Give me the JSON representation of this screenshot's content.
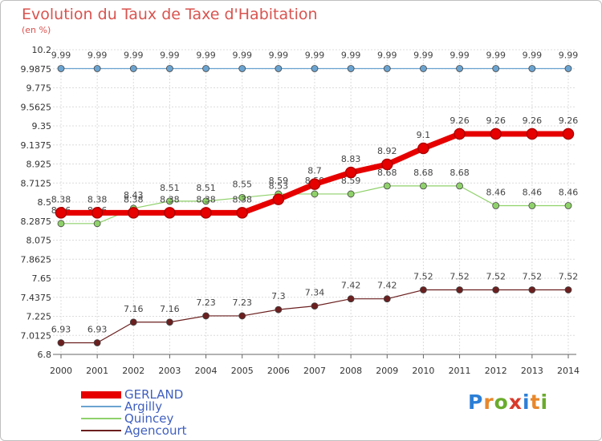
{
  "title": "Evolution du Taux de Taxe d'Habitation",
  "subtitle": "(en %)",
  "logo": {
    "text": "Proxiti",
    "letters": [
      "P",
      "r",
      "o",
      "x",
      "i",
      "t",
      "i"
    ],
    "colors": [
      "#2c7fd6",
      "#e8872a",
      "#6aab2c",
      "#d93a2b",
      "#2c7fd6",
      "#e8872a",
      "#6aab2c"
    ]
  },
  "chart_data": {
    "type": "line",
    "title": "Evolution du Taux de Taxe d'Habitation",
    "subtitle": "(en %)",
    "xlabel": "",
    "ylabel": "",
    "x": [
      "2000",
      "2001",
      "2002",
      "2003",
      "2004",
      "2005",
      "2006",
      "2007",
      "2008",
      "2009",
      "2010",
      "2011",
      "2012",
      "2013",
      "2014"
    ],
    "ylim": [
      6.8,
      10.2
    ],
    "yticks": [
      "10.2",
      "9.9875",
      "9.775",
      "9.5625",
      "9.35",
      "9.1375",
      "8.925",
      "8.7125",
      "8.5",
      "8.2875",
      "8.075",
      "7.8625",
      "7.65",
      "7.4375",
      "7.225",
      "7.0125",
      "6.8"
    ],
    "grid": true,
    "legend_position": "bottom-left",
    "series": [
      {
        "name": "Agencourt",
        "color": "#6b1f1f",
        "width": 1.2,
        "marker": 4,
        "values": [
          6.93,
          6.93,
          7.16,
          7.16,
          7.23,
          7.23,
          7.3,
          7.34,
          7.42,
          7.42,
          7.52,
          7.52,
          7.52,
          7.52,
          7.52
        ],
        "labels": [
          "6.93",
          "6.93",
          "7.16",
          "7.16",
          "7.23",
          "7.23",
          "7.3",
          "7.34",
          "7.42",
          "7.42",
          "7.52",
          "7.52",
          "7.52",
          "7.52",
          "7.52"
        ]
      },
      {
        "name": "Quincey",
        "color": "#8fd16a",
        "width": 1.2,
        "marker": 4,
        "values": [
          8.26,
          8.26,
          8.43,
          8.51,
          8.51,
          8.55,
          8.59,
          8.59,
          8.59,
          8.68,
          8.68,
          8.68,
          8.46,
          8.46,
          8.46
        ],
        "labels": [
          "8.26",
          "8.26",
          "8.43",
          "8.51",
          "8.51",
          "8.55",
          "8.59",
          "8.59",
          "8.59",
          "8.68",
          "8.68",
          "8.68",
          "8.46",
          "8.46",
          "8.46"
        ]
      },
      {
        "name": "Argilly",
        "color": "#6aa3d0",
        "width": 1.2,
        "marker": 4,
        "values": [
          9.99,
          9.99,
          9.99,
          9.99,
          9.99,
          9.99,
          9.99,
          9.99,
          9.99,
          9.99,
          9.99,
          9.99,
          9.99,
          9.99,
          9.99
        ],
        "labels": [
          "9.99",
          "9.99",
          "9.99",
          "9.99",
          "9.99",
          "9.99",
          "9.99",
          "9.99",
          "9.99",
          "9.99",
          "9.99",
          "9.99",
          "9.99",
          "9.99",
          "9.99"
        ]
      },
      {
        "name": "GERLAND",
        "color": "#e60000",
        "width": 7,
        "marker": 6.5,
        "values": [
          8.38,
          8.38,
          8.38,
          8.38,
          8.38,
          8.38,
          8.53,
          8.7,
          8.83,
          8.92,
          9.1,
          9.26,
          9.26,
          9.26,
          9.26
        ],
        "labels": [
          "8.38",
          "8.38",
          "8.38",
          "8.38",
          "8.38",
          "8.38",
          "8.53",
          "8.7",
          "8.83",
          "8.92",
          "9.1",
          "9.26",
          "9.26",
          "9.26",
          "9.26"
        ]
      }
    ],
    "legend": [
      {
        "name": "GERLAND",
        "color": "#e60000"
      },
      {
        "name": "Argilly",
        "color": "#6aa3d0"
      },
      {
        "name": "Quincey",
        "color": "#8fd16a"
      },
      {
        "name": "Agencourt",
        "color": "#6b1f1f"
      }
    ]
  }
}
